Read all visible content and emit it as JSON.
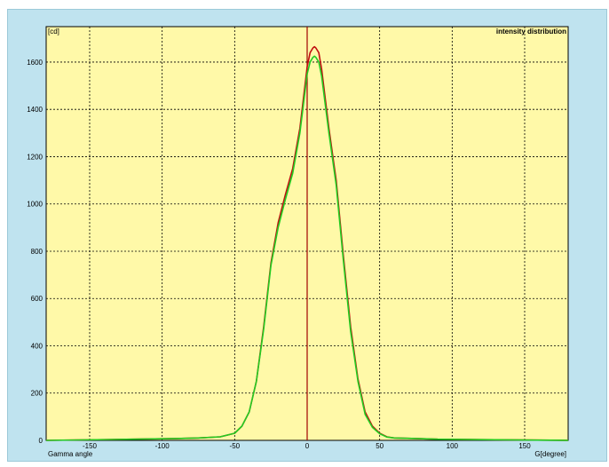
{
  "colors": {
    "frame_bg": "#bfe3ef",
    "plot_bg": "#fff9a8",
    "grid": "#000000",
    "axis_zero_line": "#a00000",
    "series_red": "#c01010",
    "series_green": "#22cc22"
  },
  "chart_data": {
    "type": "line",
    "title": "intensity distribution",
    "xlabel": "G[degree]",
    "ylabel": "[cd]",
    "x_caption_left": "Gamma angle",
    "xlim": [
      -180,
      180
    ],
    "ylim": [
      0,
      1750
    ],
    "grid": true,
    "x_ticks": [
      -150,
      -100,
      -50,
      0,
      50,
      100,
      150
    ],
    "x_tick_labels": [
      "-150",
      "-100",
      "-50",
      "0",
      "50",
      "100",
      "150"
    ],
    "y_ticks": [
      0,
      200,
      400,
      600,
      800,
      1000,
      1200,
      1400,
      1600
    ],
    "y_tick_labels": [
      "0",
      "200",
      "400",
      "600",
      "800",
      "1000",
      "1200",
      "1400",
      "1600"
    ],
    "series": [
      {
        "color": "#c01010",
        "x": [
          -180,
          -120,
          -90,
          -75,
          -60,
          -50,
          -45,
          -40,
          -35,
          -30,
          -25,
          -20,
          -15,
          -10,
          -5,
          0,
          2,
          4,
          5,
          6,
          8,
          10,
          15,
          20,
          25,
          30,
          35,
          40,
          45,
          50,
          55,
          60,
          75,
          90,
          120,
          180
        ],
        "y": [
          0,
          5,
          8,
          10,
          15,
          30,
          60,
          120,
          250,
          480,
          750,
          920,
          1040,
          1150,
          1320,
          1580,
          1640,
          1660,
          1665,
          1660,
          1640,
          1570,
          1320,
          1100,
          780,
          480,
          260,
          120,
          60,
          30,
          15,
          10,
          8,
          5,
          3,
          0
        ]
      },
      {
        "color": "#22cc22",
        "x": [
          -180,
          -120,
          -90,
          -75,
          -60,
          -50,
          -45,
          -40,
          -35,
          -30,
          -25,
          -20,
          -15,
          -10,
          -5,
          0,
          2,
          4,
          5,
          6,
          8,
          10,
          15,
          20,
          25,
          30,
          35,
          40,
          45,
          50,
          55,
          60,
          75,
          90,
          120,
          180
        ],
        "y": [
          0,
          5,
          8,
          10,
          15,
          30,
          60,
          120,
          250,
          470,
          740,
          900,
          1020,
          1130,
          1300,
          1550,
          1600,
          1620,
          1625,
          1620,
          1600,
          1540,
          1300,
          1080,
          760,
          460,
          250,
          110,
          55,
          28,
          14,
          10,
          8,
          5,
          3,
          0
        ]
      }
    ]
  }
}
